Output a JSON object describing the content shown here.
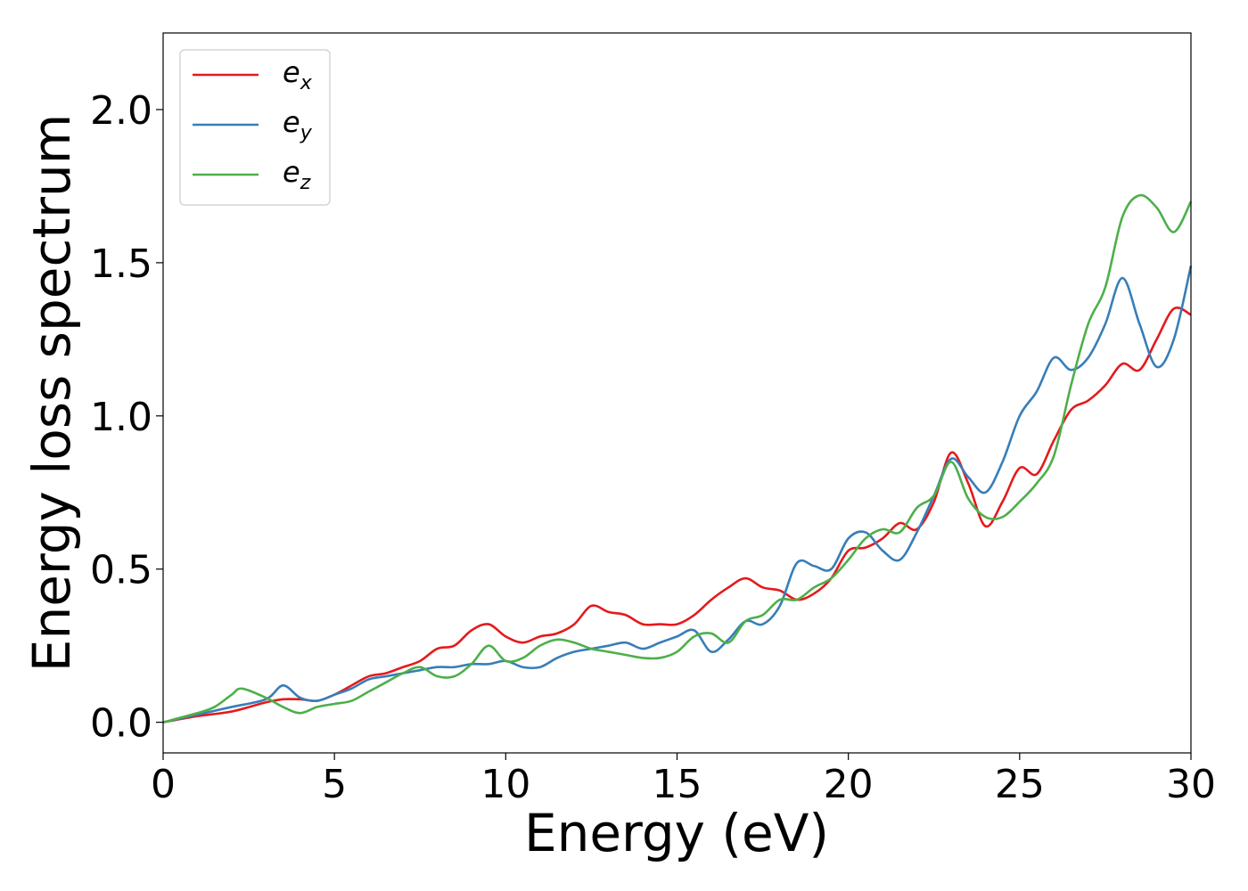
{
  "chart_data": {
    "type": "line",
    "xlabel": "Energy (eV)",
    "ylabel": "Energy loss spectrum",
    "xlim": [
      0,
      30
    ],
    "ylim": [
      -0.1,
      2.25
    ],
    "xticks": [
      0,
      5,
      10,
      15,
      20,
      25,
      30
    ],
    "xtick_labels": [
      "0",
      "5",
      "10",
      "15",
      "20",
      "25",
      "30"
    ],
    "yticks": [
      0.0,
      0.5,
      1.0,
      1.5,
      2.0
    ],
    "ytick_labels": [
      "0.0",
      "0.5",
      "1.0",
      "1.5",
      "2.0"
    ],
    "grid": false,
    "legend_position": "upper-left",
    "series": [
      {
        "name": "e_x",
        "legend_base": "e",
        "legend_sub": "x",
        "color": "#e41a1c",
        "x": [
          0,
          1,
          2,
          3,
          3.5,
          4,
          4.5,
          5,
          5.5,
          6,
          6.5,
          7,
          7.5,
          8,
          8.5,
          9,
          9.5,
          10,
          10.5,
          11,
          11.5,
          12,
          12.5,
          13,
          13.5,
          14,
          14.5,
          15,
          15.5,
          16,
          16.5,
          17,
          17.5,
          18,
          18.5,
          19,
          19.5,
          20,
          20.5,
          21,
          21.5,
          22,
          22.5,
          23,
          23.5,
          24,
          24.5,
          25,
          25.5,
          26,
          26.5,
          27,
          27.5,
          28,
          28.5,
          29,
          29.5,
          30
        ],
        "y": [
          0.0,
          0.02,
          0.035,
          0.065,
          0.075,
          0.075,
          0.07,
          0.09,
          0.12,
          0.15,
          0.16,
          0.18,
          0.2,
          0.24,
          0.25,
          0.3,
          0.32,
          0.28,
          0.26,
          0.28,
          0.29,
          0.32,
          0.38,
          0.36,
          0.35,
          0.32,
          0.32,
          0.32,
          0.35,
          0.4,
          0.44,
          0.47,
          0.44,
          0.43,
          0.4,
          0.42,
          0.47,
          0.56,
          0.57,
          0.6,
          0.65,
          0.63,
          0.72,
          0.88,
          0.78,
          0.64,
          0.72,
          0.83,
          0.81,
          0.92,
          1.02,
          1.05,
          1.1,
          1.17,
          1.15,
          1.25,
          1.35,
          1.33
        ]
      },
      {
        "name": "e_y",
        "legend_base": "e",
        "legend_sub": "y",
        "color": "#377eb8",
        "x": [
          0,
          1,
          2,
          3,
          3.5,
          4,
          4.5,
          5,
          5.5,
          6,
          6.5,
          7,
          7.5,
          8,
          8.5,
          9,
          9.5,
          10,
          10.5,
          11,
          11.5,
          12,
          12.5,
          13,
          13.5,
          14,
          14.5,
          15,
          15.5,
          16,
          16.5,
          17,
          17.5,
          18,
          18.5,
          19,
          19.5,
          20,
          20.5,
          21,
          21.5,
          22,
          22.5,
          23,
          23.5,
          24,
          24.5,
          25,
          25.5,
          26,
          26.5,
          27,
          27.5,
          28,
          28.5,
          29,
          29.5,
          30
        ],
        "y": [
          0.0,
          0.025,
          0.05,
          0.075,
          0.12,
          0.08,
          0.07,
          0.09,
          0.11,
          0.14,
          0.15,
          0.16,
          0.17,
          0.18,
          0.18,
          0.19,
          0.19,
          0.2,
          0.18,
          0.18,
          0.21,
          0.23,
          0.24,
          0.25,
          0.26,
          0.24,
          0.26,
          0.28,
          0.3,
          0.23,
          0.27,
          0.33,
          0.32,
          0.38,
          0.52,
          0.51,
          0.5,
          0.6,
          0.62,
          0.56,
          0.53,
          0.62,
          0.74,
          0.86,
          0.8,
          0.75,
          0.85,
          1.0,
          1.08,
          1.19,
          1.15,
          1.19,
          1.3,
          1.45,
          1.3,
          1.16,
          1.25,
          1.49
        ]
      },
      {
        "name": "e_z",
        "legend_base": "e",
        "legend_sub": "z",
        "color": "#4daf4a",
        "x": [
          0,
          1,
          1.5,
          2,
          2.3,
          3,
          3.5,
          4,
          4.5,
          5,
          5.5,
          6,
          6.5,
          7,
          7.5,
          8,
          8.5,
          9,
          9.5,
          10,
          10.5,
          11,
          11.5,
          12,
          12.5,
          13,
          13.5,
          14,
          14.5,
          15,
          15.5,
          16,
          16.5,
          17,
          17.5,
          18,
          18.5,
          19,
          19.5,
          20,
          20.5,
          21,
          21.5,
          22,
          22.5,
          23,
          23.5,
          24,
          24.5,
          25,
          25.5,
          26,
          26.5,
          27,
          27.5,
          28,
          28.5,
          29,
          29.5,
          30
        ],
        "y": [
          0.0,
          0.03,
          0.05,
          0.09,
          0.11,
          0.08,
          0.05,
          0.03,
          0.05,
          0.06,
          0.07,
          0.1,
          0.13,
          0.16,
          0.18,
          0.15,
          0.15,
          0.19,
          0.25,
          0.2,
          0.21,
          0.25,
          0.27,
          0.26,
          0.24,
          0.23,
          0.22,
          0.21,
          0.21,
          0.23,
          0.28,
          0.29,
          0.26,
          0.33,
          0.35,
          0.4,
          0.4,
          0.44,
          0.47,
          0.53,
          0.6,
          0.63,
          0.62,
          0.7,
          0.74,
          0.85,
          0.73,
          0.67,
          0.67,
          0.72,
          0.78,
          0.87,
          1.1,
          1.3,
          1.42,
          1.65,
          1.72,
          1.68,
          1.6,
          1.7
        ]
      }
    ]
  }
}
